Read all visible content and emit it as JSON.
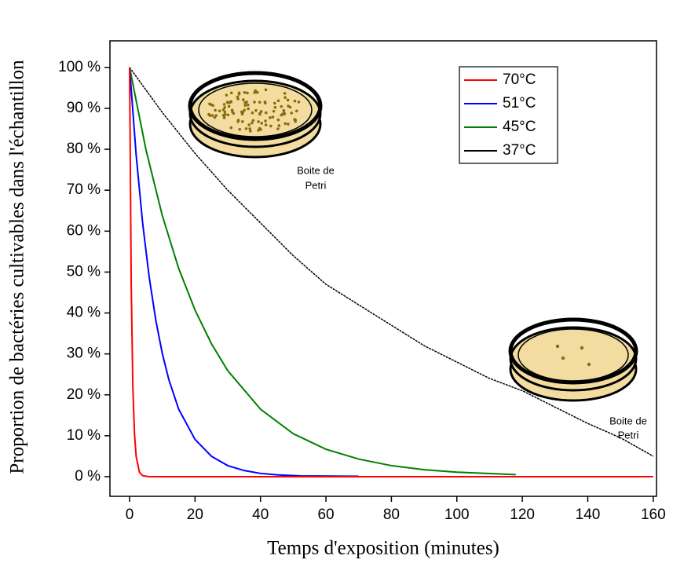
{
  "chart_data": {
    "type": "line",
    "x_label": "Temps d'exposition (minutes)",
    "y_label": "Proportion de bactéries cultivables dans l'échantillon",
    "xlim": [
      -6,
      161
    ],
    "ylim": [
      -4.8,
      106.5
    ],
    "xticks": [
      0,
      20,
      40,
      60,
      80,
      100,
      120,
      140,
      160
    ],
    "yticks": [
      {
        "value": 0,
        "label": "0 %"
      },
      {
        "value": 10,
        "label": "10 %"
      },
      {
        "value": 20,
        "label": "20 %"
      },
      {
        "value": 30,
        "label": "30 %"
      },
      {
        "value": 40,
        "label": "40 %"
      },
      {
        "value": 50,
        "label": "50 %"
      },
      {
        "value": 60,
        "label": "60 %"
      },
      {
        "value": 70,
        "label": "70 %"
      },
      {
        "value": 80,
        "label": "80 %"
      },
      {
        "value": 90,
        "label": "90 %"
      },
      {
        "value": 100,
        "label": "100 %"
      }
    ],
    "legend": "upper right",
    "series": [
      {
        "name": "70°C",
        "color": "#ff0000",
        "x": [
          0,
          0.5,
          1,
          1.5,
          2,
          3,
          4,
          6,
          160
        ],
        "values": [
          100,
          47,
          22,
          10.5,
          5,
          1.1,
          0.25,
          0,
          0
        ]
      },
      {
        "name": "51°C",
        "color": "#0000ff",
        "x": [
          0,
          2,
          4,
          6,
          8,
          10,
          12,
          15,
          20,
          25,
          30,
          35,
          40,
          45,
          52,
          70
        ],
        "values": [
          100,
          78.7,
          61.9,
          48.7,
          38.3,
          30.1,
          23.7,
          16.5,
          9.1,
          5,
          2.7,
          1.5,
          0.8,
          0.45,
          0.2,
          0.1
        ]
      },
      {
        "name": "45°C",
        "color": "#008000",
        "x": [
          0,
          5,
          10,
          15,
          20,
          25,
          30,
          40,
          50,
          60,
          70,
          80,
          90,
          100,
          118
        ],
        "values": [
          100,
          79.9,
          63.8,
          50.9,
          40.7,
          32.5,
          25.9,
          16.5,
          10.5,
          6.7,
          4.3,
          2.7,
          1.7,
          1.1,
          0.5
        ]
      },
      {
        "name": "37°C",
        "color": "#000000",
        "x": [
          0,
          10,
          20,
          30,
          40,
          50,
          60,
          70,
          80,
          90,
          100,
          110,
          120,
          130,
          140,
          150,
          160
        ],
        "values": [
          100,
          89,
          79,
          70,
          62,
          54,
          47,
          42,
          37,
          32,
          28,
          24,
          21,
          17,
          13,
          9.5,
          5
        ]
      }
    ],
    "annotations": [
      [
        "Boite de",
        "Petri"
      ],
      [
        "Boite de",
        "Petri"
      ]
    ]
  }
}
